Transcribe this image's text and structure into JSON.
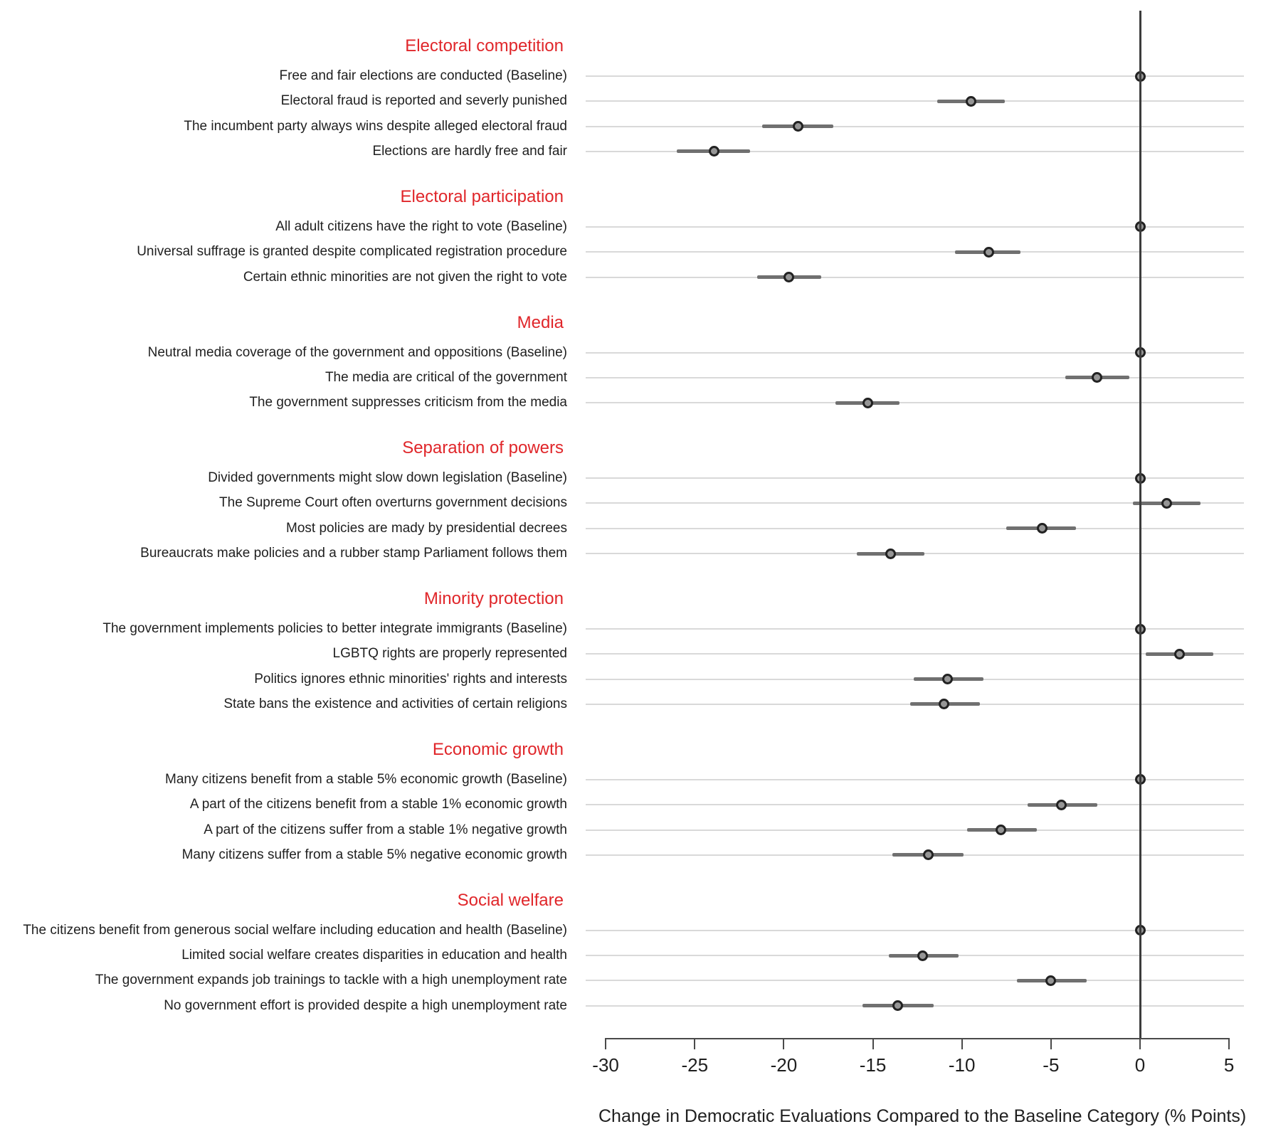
{
  "colors": {
    "header_red": "#e0262a",
    "label_text": "#1f1f1f",
    "tick_text": "#1f1f1f",
    "dot_fill": "#969696",
    "dot_border": "#222222",
    "ci_line": "#707070",
    "gridline": "#d9d9d9",
    "zero_line": "#3c3c3c",
    "axis_line": "#4a4a4a"
  },
  "chart_data": {
    "type": "scatter",
    "subtype": "dot-and-whisker coefficient plot, horizontal rows grouped in sections",
    "xlabel": "Change in Democratic Evaluations Compared to the Baseline Category (% Points)",
    "xlim": [
      -31.2,
      5.8
    ],
    "x_ticks": [
      -30,
      -25,
      -20,
      -15,
      -10,
      -5,
      0,
      5
    ],
    "x_tick_labels": [
      "-30",
      "-25",
      "-20",
      "-15",
      "-10",
      "-5",
      "0",
      "5"
    ],
    "zero_reference_line": 0,
    "grid": "one light horizontal gridline per row",
    "legend": "none",
    "sections": [
      {
        "header": "Electoral competition",
        "rows": [
          {
            "label": "Free and fair elections are conducted (Baseline)",
            "estimate": 0,
            "ci": [
              0,
              0
            ],
            "baseline": true
          },
          {
            "label": "Electoral fraud is reported and severly punished",
            "estimate": -9.5,
            "ci": [
              -11.4,
              -7.6
            ],
            "baseline": false
          },
          {
            "label": "The incumbent party always wins despite alleged electoral fraud",
            "estimate": -19.2,
            "ci": [
              -21.2,
              -17.2
            ],
            "baseline": false
          },
          {
            "label": "Elections are hardly free and fair",
            "estimate": -23.9,
            "ci": [
              -26.0,
              -21.9
            ],
            "baseline": false
          }
        ]
      },
      {
        "header": "Electoral participation",
        "rows": [
          {
            "label": "All adult citizens have the right to vote (Baseline)",
            "estimate": 0,
            "ci": [
              0,
              0
            ],
            "baseline": true
          },
          {
            "label": "Universal suffrage is granted despite complicated registration procedure",
            "estimate": -8.5,
            "ci": [
              -10.4,
              -6.7
            ],
            "baseline": false
          },
          {
            "label": "Certain ethnic minorities are not given the right to vote",
            "estimate": -19.7,
            "ci": [
              -21.5,
              -17.9
            ],
            "baseline": false
          }
        ]
      },
      {
        "header": "Media",
        "rows": [
          {
            "label": "Neutral media coverage of the government and oppositions (Baseline)",
            "estimate": 0,
            "ci": [
              0,
              0
            ],
            "baseline": true
          },
          {
            "label": "The media are critical of the government",
            "estimate": -2.4,
            "ci": [
              -4.2,
              -0.6
            ],
            "baseline": false
          },
          {
            "label": "The government suppresses criticism from the media",
            "estimate": -15.3,
            "ci": [
              -17.1,
              -13.5
            ],
            "baseline": false
          }
        ]
      },
      {
        "header": "Separation of powers",
        "rows": [
          {
            "label": "Divided governments might slow down legislation (Baseline)",
            "estimate": 0,
            "ci": [
              0,
              0
            ],
            "baseline": true
          },
          {
            "label": "The Supreme Court often overturns government decisions",
            "estimate": 1.5,
            "ci": [
              -0.4,
              3.4
            ],
            "baseline": false
          },
          {
            "label": "Most policies are mady by presidential decrees",
            "estimate": -5.5,
            "ci": [
              -7.5,
              -3.6
            ],
            "baseline": false
          },
          {
            "label": "Bureaucrats make policies and a rubber stamp Parliament follows them",
            "estimate": -14.0,
            "ci": [
              -15.9,
              -12.1
            ],
            "baseline": false
          }
        ]
      },
      {
        "header": "Minority protection",
        "rows": [
          {
            "label": "The government implements policies to better integrate immigrants (Baseline)",
            "estimate": 0,
            "ci": [
              0,
              0
            ],
            "baseline": true
          },
          {
            "label": "LGBTQ rights are properly represented",
            "estimate": 2.2,
            "ci": [
              0.3,
              4.1
            ],
            "baseline": false
          },
          {
            "label": "Politics ignores ethnic minorities' rights and interests",
            "estimate": -10.8,
            "ci": [
              -12.7,
              -8.8
            ],
            "baseline": false
          },
          {
            "label": "State bans the existence and activities of certain religions",
            "estimate": -11.0,
            "ci": [
              -12.9,
              -9.0
            ],
            "baseline": false
          }
        ]
      },
      {
        "header": "Economic growth",
        "rows": [
          {
            "label": "Many citizens benefit from a stable 5% economic growth (Baseline)",
            "estimate": 0,
            "ci": [
              0,
              0
            ],
            "baseline": true
          },
          {
            "label": "A part of the citizens benefit from a stable 1% economic growth",
            "estimate": -4.4,
            "ci": [
              -6.3,
              -2.4
            ],
            "baseline": false
          },
          {
            "label": "A part of the citizens suffer from a stable 1% negative growth",
            "estimate": -7.8,
            "ci": [
              -9.7,
              -5.8
            ],
            "baseline": false
          },
          {
            "label": "Many citizens suffer from a stable 5% negative economic growth",
            "estimate": -11.9,
            "ci": [
              -13.9,
              -9.9
            ],
            "baseline": false
          }
        ]
      },
      {
        "header": "Social welfare",
        "rows": [
          {
            "label": "The citizens benefit from generous social welfare including education and health (Baseline)",
            "estimate": 0,
            "ci": [
              0,
              0
            ],
            "baseline": true
          },
          {
            "label": "Limited social welfare creates disparities in education and health",
            "estimate": -12.2,
            "ci": [
              -14.1,
              -10.2
            ],
            "baseline": false
          },
          {
            "label": "The government expands job trainings to tackle with a high unemployment rate",
            "estimate": -5.0,
            "ci": [
              -6.9,
              -3.0
            ],
            "baseline": false
          },
          {
            "label": "No government effort is provided despite a high unemployment rate",
            "estimate": -13.6,
            "ci": [
              -15.6,
              -11.6
            ],
            "baseline": false
          }
        ]
      }
    ]
  }
}
